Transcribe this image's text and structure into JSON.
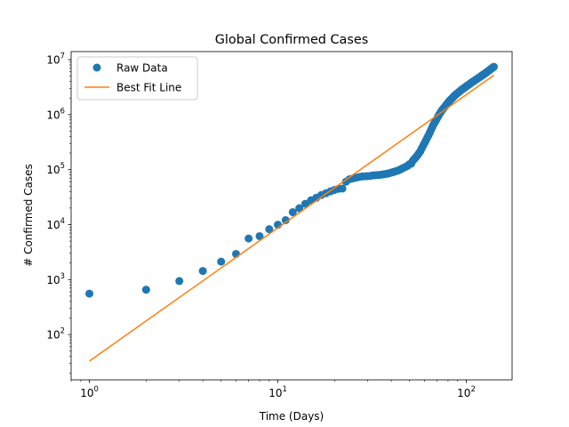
{
  "chart_data": {
    "type": "scatter",
    "title": "Global Confirmed Cases",
    "xlabel": "Time (Days)",
    "ylabel": "# Confirmed Cases",
    "xscale": "log",
    "yscale": "log",
    "xlim": [
      0.8,
      175
    ],
    "ylim": [
      15,
      14000000
    ],
    "grid": false,
    "legend_position": "upper-left",
    "x_ticks": [
      {
        "value": 1,
        "base": "10",
        "exp": "0"
      },
      {
        "value": 10,
        "base": "10",
        "exp": "1"
      },
      {
        "value": 100,
        "base": "10",
        "exp": "2"
      }
    ],
    "y_ticks": [
      {
        "value": 100,
        "base": "10",
        "exp": "2"
      },
      {
        "value": 1000,
        "base": "10",
        "exp": "3"
      },
      {
        "value": 10000,
        "base": "10",
        "exp": "4"
      },
      {
        "value": 100000,
        "base": "10",
        "exp": "5"
      },
      {
        "value": 1000000,
        "base": "10",
        "exp": "6"
      },
      {
        "value": 10000000,
        "base": "10",
        "exp": "7"
      }
    ],
    "series": [
      {
        "name": "Raw Data",
        "kind": "scatter",
        "color": "#1f77b4",
        "points": [
          [
            1,
            555
          ],
          [
            2,
            654
          ],
          [
            3,
            941
          ],
          [
            4,
            1434
          ],
          [
            5,
            2118
          ],
          [
            6,
            2927
          ],
          [
            7,
            5578
          ],
          [
            8,
            6166
          ],
          [
            9,
            8234
          ],
          [
            10,
            9927
          ],
          [
            11,
            12038
          ],
          [
            12,
            16787
          ],
          [
            13,
            19887
          ],
          [
            14,
            23898
          ],
          [
            15,
            27643
          ],
          [
            16,
            30802
          ],
          [
            17,
            34395
          ],
          [
            18,
            37129
          ],
          [
            19,
            40160
          ],
          [
            20,
            42769
          ],
          [
            21,
            44811
          ],
          [
            22,
            45204
          ],
          [
            23,
            60381
          ],
          [
            24,
            66907
          ],
          [
            25,
            69048
          ],
          [
            26,
            71236
          ],
          [
            27,
            73270
          ],
          [
            28,
            75152
          ],
          [
            29,
            75651
          ],
          [
            30,
            76208
          ],
          [
            31,
            76841
          ],
          [
            32,
            78599
          ],
          [
            33,
            78985
          ],
          [
            34,
            79570
          ],
          [
            35,
            80415
          ],
          [
            36,
            81397
          ],
          [
            37,
            82756
          ],
          [
            38,
            84124
          ],
          [
            39,
            86013
          ],
          [
            40,
            88371
          ],
          [
            41,
            90309
          ],
          [
            42,
            92844
          ],
          [
            43,
            95124
          ],
          [
            44,
            97886
          ],
          [
            45,
            101800
          ],
          [
            46,
            105836
          ],
          [
            47,
            109835
          ],
          [
            48,
            113582
          ],
          [
            49,
            118582
          ],
          [
            50,
            125865
          ],
          [
            51,
            128343
          ],
          [
            52,
            145193
          ],
          [
            53,
            156099
          ],
          [
            54,
            167447
          ],
          [
            55,
            181546
          ],
          [
            56,
            197168
          ],
          [
            57,
            214915
          ],
          [
            58,
            242713
          ],
          [
            59,
            272167
          ],
          [
            60,
            304528
          ],
          [
            61,
            336953
          ],
          [
            62,
            378235
          ],
          [
            63,
            418045
          ],
          [
            64,
            467653
          ],
          [
            65,
            529591
          ],
          [
            66,
            593291
          ],
          [
            67,
            660706
          ],
          [
            68,
            720117
          ],
          [
            69,
            782365
          ],
          [
            70,
            857487
          ],
          [
            71,
            932605
          ],
          [
            72,
            1013466
          ],
          [
            73,
            1095917
          ],
          [
            74,
            1176060
          ],
          [
            75,
            1249754
          ],
          [
            76,
            1321481
          ],
          [
            77,
            1396476
          ],
          [
            78,
            1480202
          ],
          [
            79,
            1565278
          ],
          [
            80,
            1657526
          ],
          [
            81,
            1735650
          ],
          [
            82,
            1834721
          ],
          [
            83,
            1904838
          ],
          [
            84,
            1976191
          ],
          [
            85,
            2056054
          ],
          [
            86,
            2152437
          ],
          [
            87,
            2240190
          ],
          [
            88,
            2317758
          ],
          [
            89,
            2401378
          ],
          [
            90,
            2472259
          ],
          [
            91,
            2549123
          ],
          [
            92,
            2624000
          ],
          [
            93,
            2708000
          ],
          [
            94,
            2795000
          ],
          [
            95,
            2881000
          ],
          [
            96,
            2955000
          ],
          [
            97,
            3023000
          ],
          [
            98,
            3100000
          ],
          [
            99,
            3195000
          ],
          [
            100,
            3272000
          ],
          [
            101,
            3347000
          ],
          [
            102,
            3429000
          ],
          [
            103,
            3507000
          ],
          [
            104,
            3590000
          ],
          [
            105,
            3676000
          ],
          [
            106,
            3772000
          ],
          [
            107,
            3856000
          ],
          [
            108,
            3942000
          ],
          [
            109,
            4020000
          ],
          [
            110,
            4100000
          ],
          [
            111,
            4190000
          ],
          [
            112,
            4280000
          ],
          [
            113,
            4380000
          ],
          [
            114,
            4470000
          ],
          [
            115,
            4560000
          ],
          [
            116,
            4640000
          ],
          [
            117,
            4730000
          ],
          [
            118,
            4820000
          ],
          [
            119,
            4920000
          ],
          [
            120,
            5030000
          ],
          [
            121,
            5140000
          ],
          [
            122,
            5240000
          ],
          [
            123,
            5330000
          ],
          [
            124,
            5420000
          ],
          [
            125,
            5520000
          ],
          [
            126,
            5630000
          ],
          [
            127,
            5750000
          ],
          [
            128,
            5880000
          ],
          [
            129,
            6000000
          ],
          [
            130,
            6110000
          ],
          [
            131,
            6220000
          ],
          [
            132,
            6350000
          ],
          [
            133,
            6480000
          ],
          [
            134,
            6620000
          ],
          [
            135,
            6750000
          ],
          [
            136,
            6880000
          ],
          [
            137,
            7000000
          ],
          [
            138,
            7140000
          ],
          [
            139,
            7280000
          ],
          [
            140,
            7410000
          ]
        ]
      },
      {
        "name": "Best Fit Line",
        "kind": "line",
        "color": "#ff7f0e",
        "points": [
          [
            1,
            33
          ],
          [
            140,
            5200000
          ]
        ]
      }
    ]
  }
}
